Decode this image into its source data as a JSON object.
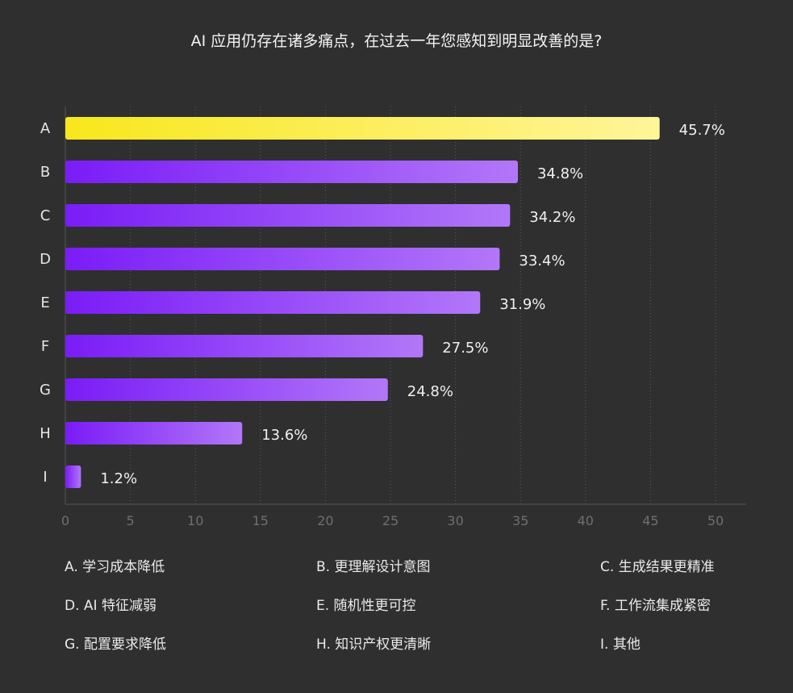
{
  "chart_data": {
    "type": "bar",
    "orientation": "horizontal",
    "title": "AI 应用仍存在诸多痛点，在过去一年您感知到明显改善的是?",
    "categories": [
      "A",
      "B",
      "C",
      "D",
      "E",
      "F",
      "G",
      "H",
      "I"
    ],
    "values": [
      45.7,
      34.8,
      34.2,
      33.4,
      31.9,
      27.5,
      24.8,
      13.6,
      1.2
    ],
    "value_labels": [
      "45.7%",
      "34.8%",
      "34.2%",
      "33.4%",
      "31.9%",
      "27.5%",
      "24.8%",
      "13.6%",
      "1.2%"
    ],
    "xlim": [
      0,
      50
    ],
    "x_ticks": [
      "0",
      "5",
      "10",
      "15",
      "20",
      "25",
      "30",
      "35",
      "40",
      "45",
      "50"
    ],
    "grid": "vertical dotted",
    "colors": {
      "highlight_start": "#f8e71c",
      "highlight_end": "#fff59a",
      "bar_start": "#7a1cf7",
      "bar_end": "#b277f8",
      "background": "#2f2f2f"
    }
  },
  "legend": [
    "A. 学习成本降低",
    "B. 更理解设计意图",
    "C. 生成结果更精准",
    "D.  AI 特征减弱",
    "E. 随机性更可控",
    "F. 工作流集成紧密",
    "G. 配置要求降低",
    "H. 知识产权更清晰",
    "I. 其他"
  ]
}
